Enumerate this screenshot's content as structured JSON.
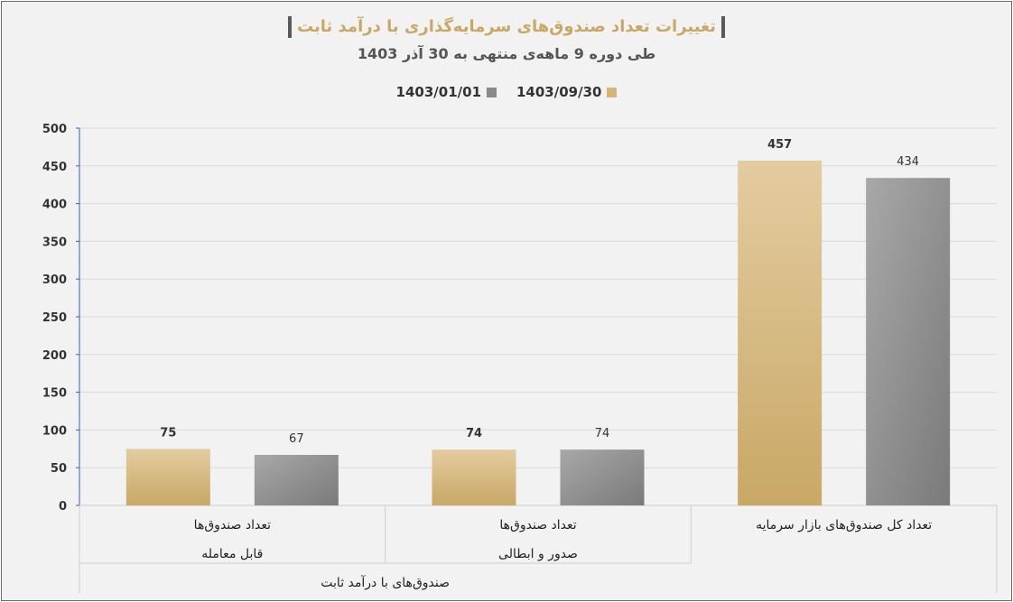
{
  "chart_data": {
    "type": "bar",
    "title": "تغییرات تعداد صندوق‌های سرمایه‌گذاری با درآمد ثابت",
    "subtitle": "طی دوره 9 ماهه‌ی منتهی به 30 آذر 1403",
    "categories": [
      [
        "تعداد صندوق‌ها",
        "قابل معامله"
      ],
      [
        "تعداد صندوق‌ها",
        "صدور و ابطالی"
      ],
      [
        "تعداد کل صندوق‌های بازار سرمایه"
      ]
    ],
    "group_label": "صندوق‌های با درآمد ثابت",
    "series": [
      {
        "name": "1403/09/30",
        "values": [
          75,
          74,
          457
        ],
        "color": "#d4b67a"
      },
      {
        "name": "1403/01/01",
        "values": [
          67,
          74,
          434
        ],
        "color": "#8a8a8a"
      }
    ],
    "ylim": [
      0,
      500
    ],
    "yticks": [
      "0",
      "50",
      "100",
      "150",
      "200",
      "250",
      "300",
      "350",
      "400",
      "450",
      "500"
    ],
    "grid": true,
    "legend": "top"
  }
}
